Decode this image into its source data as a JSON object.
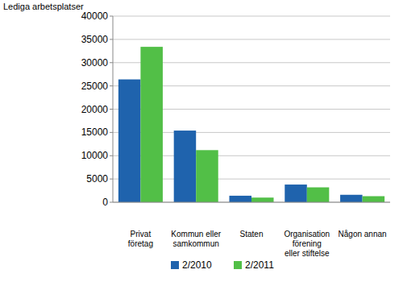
{
  "chart_data": {
    "type": "bar",
    "y_label": "Lediga arbetsplatser",
    "categories": [
      "Privat\nföretag",
      "Kommun eller\nsamkommun",
      "Staten",
      "Organisation\nförening\neller stiftelse",
      "Någon annan"
    ],
    "series": [
      {
        "name": "2/2010",
        "color": "#1f63ad",
        "values": [
          26400,
          15400,
          1400,
          3800,
          1600
        ]
      },
      {
        "name": "2/2011",
        "color": "#52bf47",
        "values": [
          33400,
          11200,
          1000,
          3200,
          1300
        ]
      }
    ],
    "ylim": [
      0,
      40000
    ],
    "yticks": [
      0,
      5000,
      10000,
      15000,
      20000,
      25000,
      30000,
      35000,
      40000
    ],
    "grid": true,
    "legend": "bottom"
  }
}
